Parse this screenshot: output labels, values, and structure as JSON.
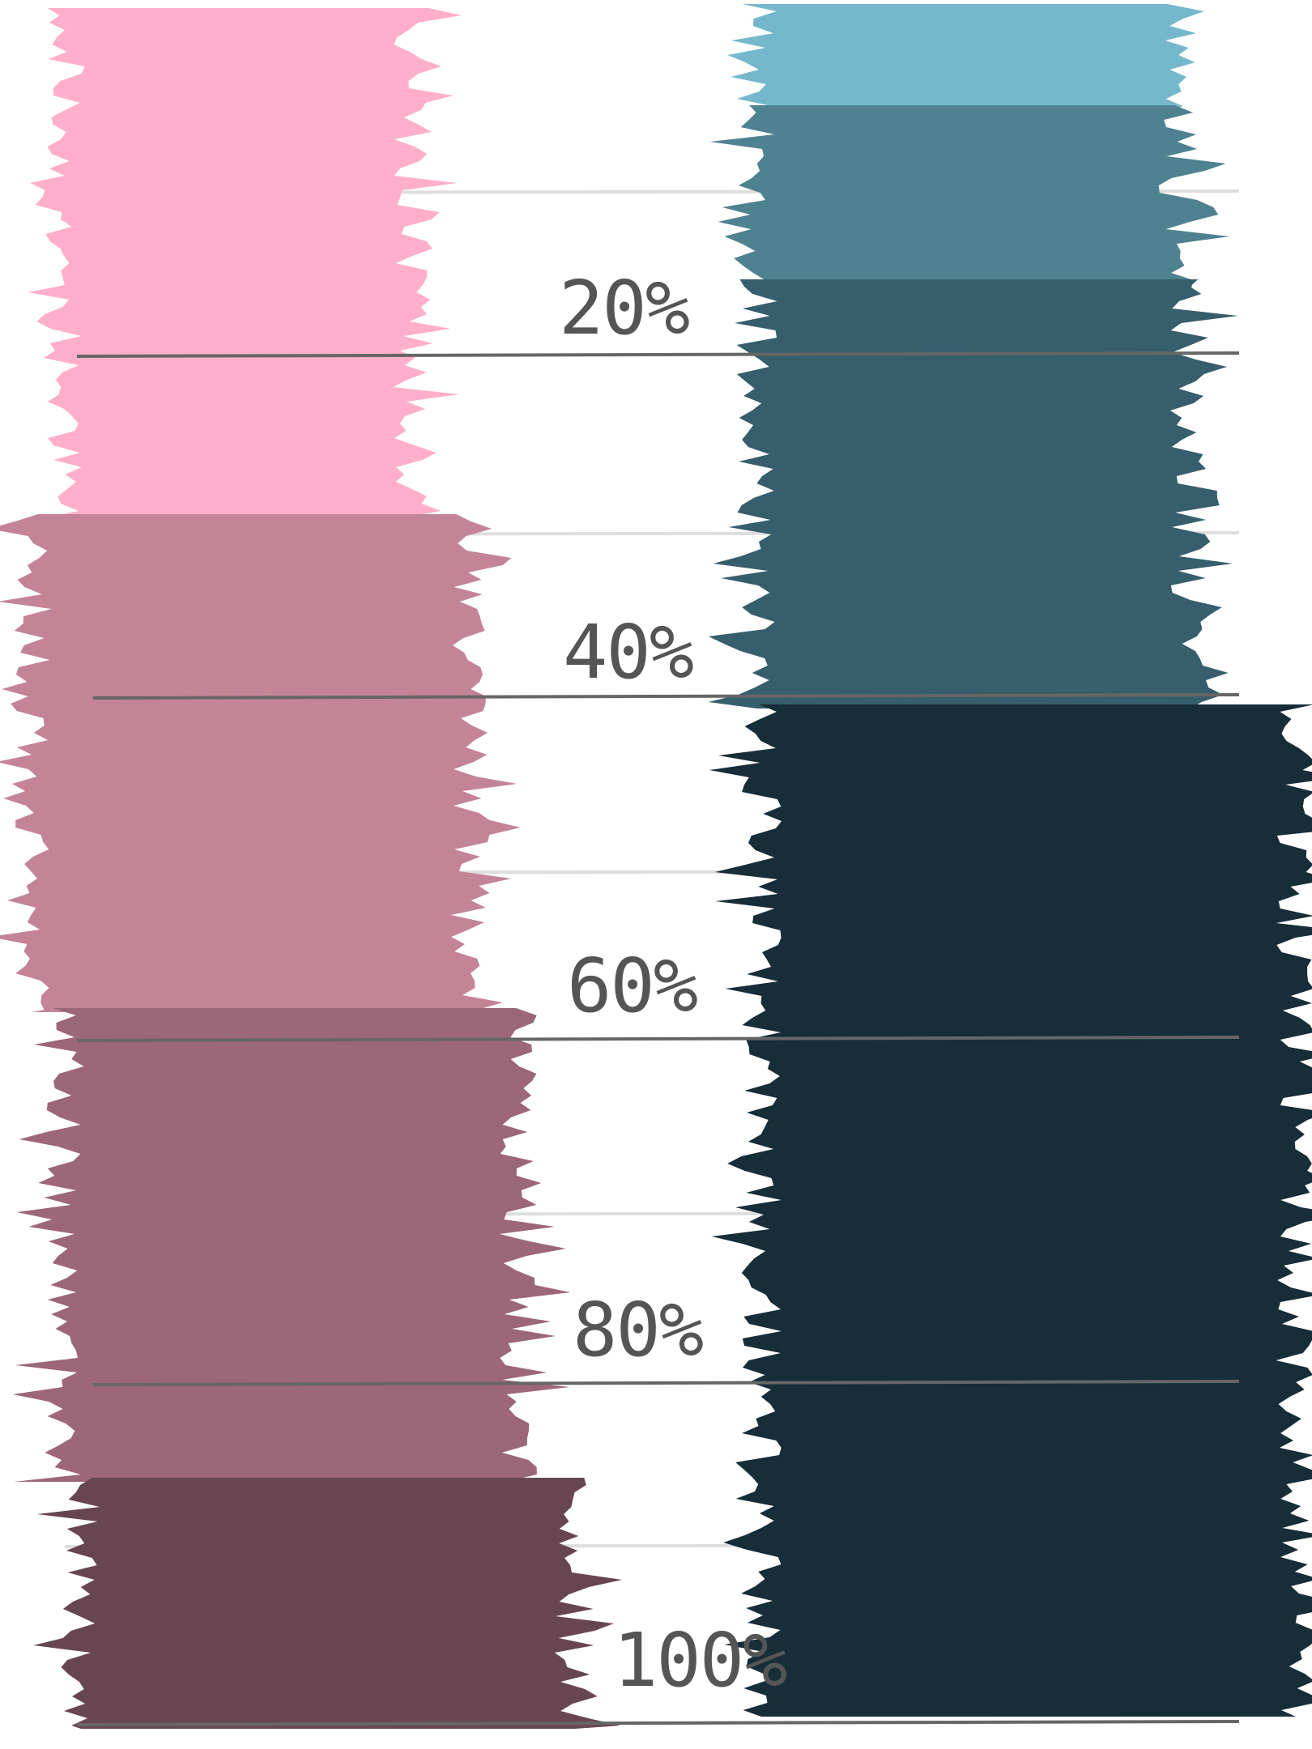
{
  "scale": {
    "labels": [
      "20%",
      "40%",
      "60%",
      "80%",
      "100%"
    ]
  },
  "swatches": {
    "left": [
      {
        "name": "pink-light",
        "color": "#FFAFCC"
      },
      {
        "name": "pink-mauve",
        "color": "#C48498"
      },
      {
        "name": "pink-rose",
        "color": "#9C6778"
      },
      {
        "name": "pink-dark",
        "color": "#684651"
      }
    ],
    "right": [
      {
        "name": "teal-light",
        "color": "#75B8CB"
      },
      {
        "name": "teal-mid",
        "color": "#4F8291"
      },
      {
        "name": "teal-slate",
        "color": "#365E6C"
      },
      {
        "name": "teal-dark",
        "color": "#172D37"
      }
    ]
  },
  "colors": {
    "major_line": "#666666",
    "minor_line": "#dedede",
    "label": "#555555"
  }
}
